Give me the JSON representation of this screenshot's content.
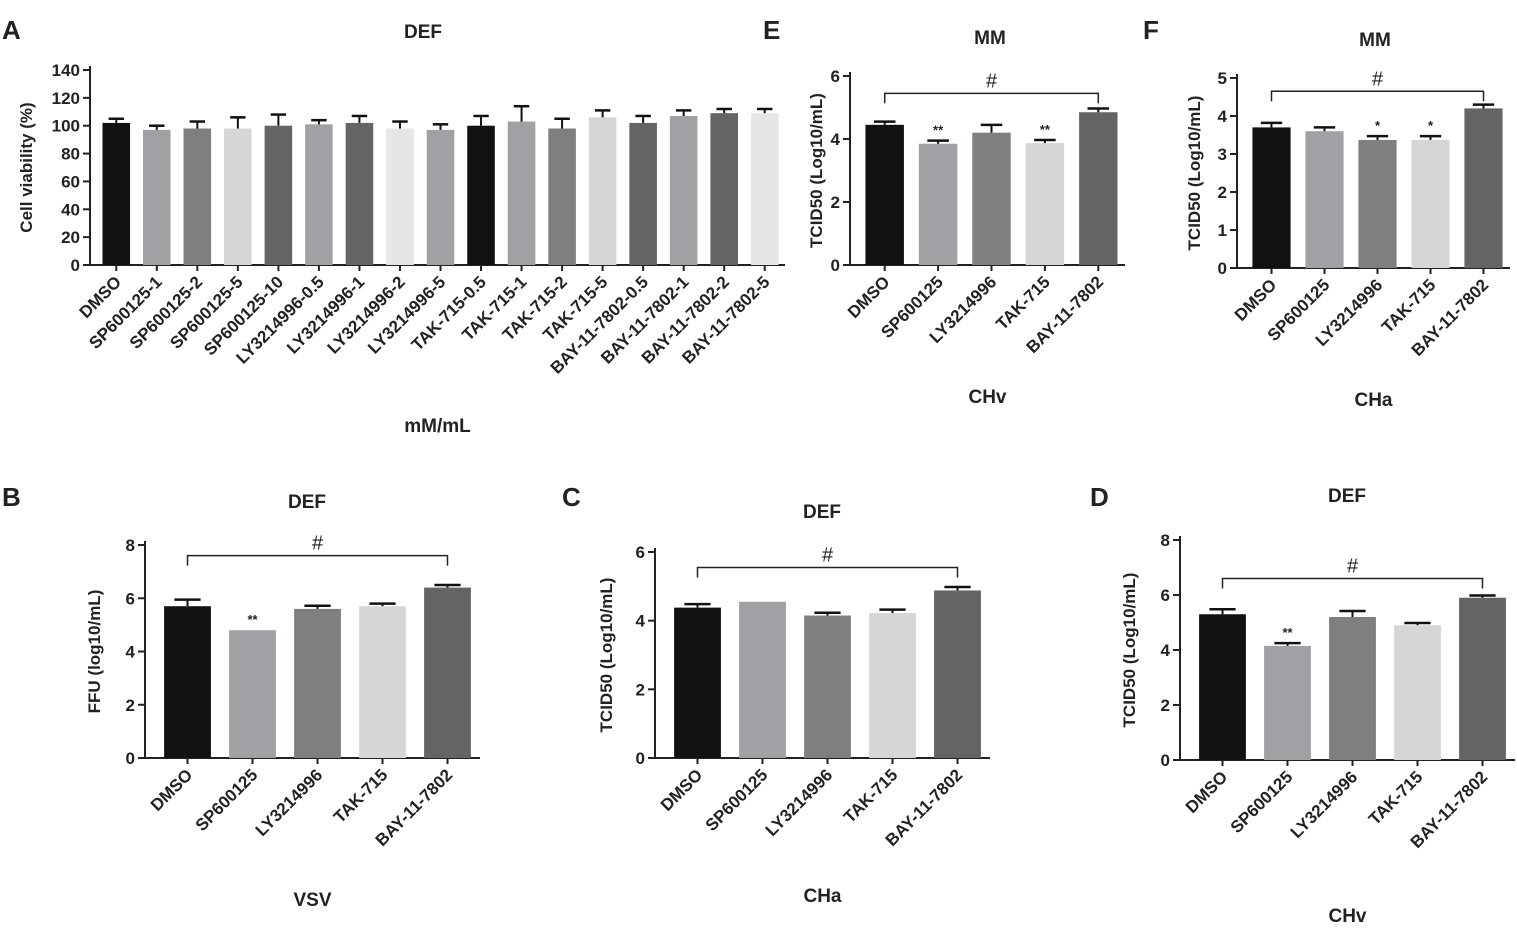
{
  "chart_data": [
    {
      "id": "A",
      "panel_label": "A",
      "type": "bar",
      "title": "DEF",
      "xlabel": "mM/mL",
      "ylabel": "Cell viability (%)",
      "ylim": [
        0,
        140
      ],
      "yticks": [
        0,
        20,
        40,
        60,
        80,
        100,
        120,
        140
      ],
      "categories": [
        "DMSO",
        "SP600125-1",
        "SP600125-2",
        "SP600125-5",
        "SP600125-10",
        "LY3214996-0.5",
        "LY3214996-1",
        "LY3214996-2",
        "LY3214996-5",
        "TAK-715-0.5",
        "TAK-715-1",
        "TAK-715-2",
        "TAK-715-5",
        "BAY-11-7802-0.5",
        "BAY-11-7802-1",
        "BAY-11-7802-2",
        "BAY-11-7802-5"
      ],
      "values": [
        102,
        97,
        98,
        98,
        100,
        101,
        102,
        98,
        97,
        100,
        103,
        98,
        106,
        102,
        107,
        109,
        109
      ],
      "errors": [
        3,
        3,
        5,
        8,
        8,
        3,
        5,
        5,
        4,
        7,
        11,
        7,
        5,
        5,
        4,
        3,
        3
      ],
      "colors": [
        "#111111",
        "#a0a1a4",
        "#7e7f80",
        "#d6d6d6",
        "#636466",
        "#a0a1a4",
        "#636466",
        "#e6e6e6",
        "#a0a1a4",
        "#111111",
        "#a0a1a4",
        "#7e7f80",
        "#d6d6d6",
        "#636466",
        "#a0a1a4",
        "#636466",
        "#e6e6e6"
      ],
      "significance": [
        "",
        "",
        "",
        "",
        "",
        "",
        "",
        "",
        "",
        "",
        "",
        "",
        "",
        "",
        "",
        "",
        ""
      ],
      "bracket": null
    },
    {
      "id": "B",
      "panel_label": "B",
      "type": "bar",
      "title": "DEF",
      "xlabel": "VSV",
      "ylabel": "FFU (log10/mL)",
      "ylim": [
        0,
        8
      ],
      "yticks": [
        0,
        2,
        4,
        6,
        8
      ],
      "categories": [
        "DMSO",
        "SP600125",
        "LY3214996",
        "TAK-715",
        "BAY-11-7802"
      ],
      "values": [
        5.7,
        4.8,
        5.6,
        5.7,
        6.4
      ],
      "errors": [
        0.25,
        0,
        0.12,
        0.1,
        0.1
      ],
      "colors": [
        "#111111",
        "#a0a1a4",
        "#7e7f80",
        "#d6d6d6",
        "#636466"
      ],
      "significance": [
        "",
        "**",
        "",
        "",
        ""
      ],
      "bracket": {
        "from": 0,
        "to": 4,
        "level": 7.6,
        "label": "#"
      }
    },
    {
      "id": "C",
      "panel_label": "C",
      "type": "bar",
      "title": "DEF",
      "xlabel": "CHa",
      "ylabel": "TCID50 (Log10/mL)",
      "ylim": [
        0,
        6
      ],
      "yticks": [
        0,
        2,
        4,
        6
      ],
      "categories": [
        "DMSO",
        "SP600125",
        "LY3214996",
        "TAK-715",
        "BAY-11-7802"
      ],
      "values": [
        4.38,
        4.55,
        4.15,
        4.22,
        4.88
      ],
      "errors": [
        0.1,
        0,
        0.08,
        0.1,
        0.1
      ],
      "colors": [
        "#111111",
        "#a0a1a4",
        "#7e7f80",
        "#d6d6d6",
        "#636466"
      ],
      "significance": [
        "",
        "",
        "",
        "",
        ""
      ],
      "bracket": {
        "from": 0,
        "to": 4,
        "level": 5.55,
        "label": "#"
      }
    },
    {
      "id": "D",
      "panel_label": "D",
      "type": "bar",
      "title": "DEF",
      "xlabel": "CHv",
      "ylabel": "TCID50 (Log10/mL)",
      "ylim": [
        0,
        8
      ],
      "yticks": [
        0,
        2,
        4,
        6,
        8
      ],
      "categories": [
        "DMSO",
        "SP600125",
        "LY3214996",
        "TAK-715",
        "BAY-11-7802"
      ],
      "values": [
        5.3,
        4.15,
        5.2,
        4.9,
        5.9
      ],
      "errors": [
        0.18,
        0.1,
        0.22,
        0.08,
        0.08
      ],
      "colors": [
        "#111111",
        "#a0a1a4",
        "#7e7f80",
        "#d6d6d6",
        "#636466"
      ],
      "significance": [
        "",
        "**",
        "",
        "",
        ""
      ],
      "bracket": {
        "from": 0,
        "to": 4,
        "level": 6.6,
        "label": "#"
      }
    },
    {
      "id": "E",
      "panel_label": "E",
      "type": "bar",
      "title": "MM",
      "xlabel": "CHv",
      "ylabel": "TCID50 (Log10/mL)",
      "ylim": [
        0,
        6
      ],
      "yticks": [
        0,
        2,
        4,
        6
      ],
      "categories": [
        "DMSO",
        "SP600125",
        "LY3214996",
        "TAK-715",
        "BAY-11-7802"
      ],
      "values": [
        4.45,
        3.85,
        4.2,
        3.87,
        4.85
      ],
      "errors": [
        0.1,
        0.1,
        0.25,
        0.1,
        0.12
      ],
      "colors": [
        "#111111",
        "#a0a1a4",
        "#7e7f80",
        "#d6d6d6",
        "#636466"
      ],
      "significance": [
        "",
        "**",
        "",
        "**",
        ""
      ],
      "bracket": {
        "from": 0,
        "to": 4,
        "level": 5.45,
        "label": "#"
      }
    },
    {
      "id": "F",
      "panel_label": "F",
      "type": "bar",
      "title": "MM",
      "xlabel": "CHa",
      "ylabel": "TCID50 (Log10/mL)",
      "ylim": [
        0,
        5
      ],
      "yticks": [
        0,
        1,
        2,
        3,
        4,
        5
      ],
      "categories": [
        "DMSO",
        "SP600125",
        "LY3214996",
        "TAK-715",
        "BAY-11-7802"
      ],
      "values": [
        3.7,
        3.6,
        3.37,
        3.37,
        4.2
      ],
      "errors": [
        0.12,
        0.1,
        0.1,
        0.1,
        0.1
      ],
      "colors": [
        "#111111",
        "#a0a1a4",
        "#7e7f80",
        "#d6d6d6",
        "#636466"
      ],
      "significance": [
        "",
        "",
        "*",
        "*",
        ""
      ],
      "bracket": {
        "from": 0,
        "to": 4,
        "level": 4.65,
        "label": "#"
      }
    }
  ]
}
